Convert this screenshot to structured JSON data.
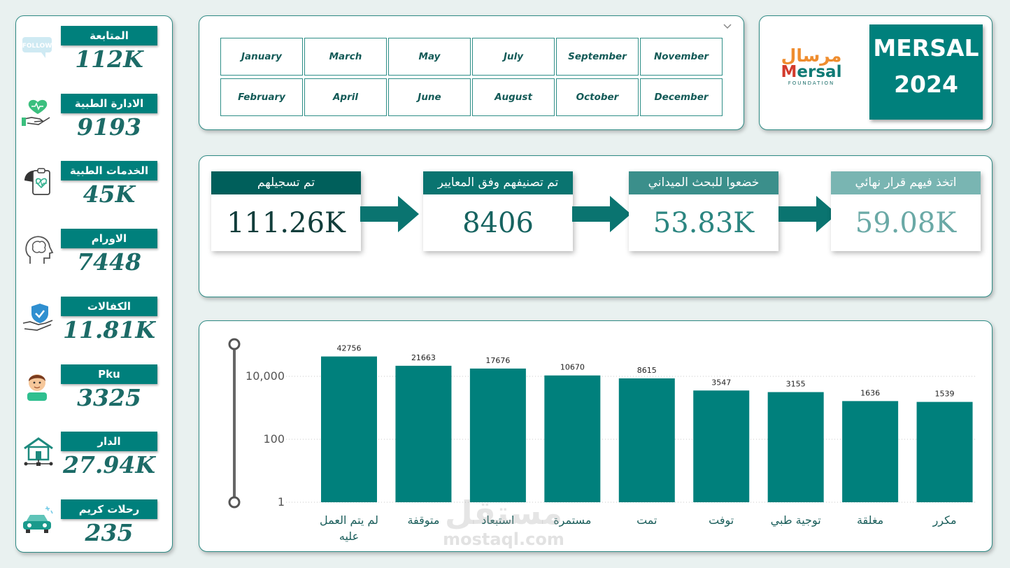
{
  "dashboard": {
    "title_line1": "MERSAL",
    "title_line2": "2024"
  },
  "logo": {
    "arabic": "مرسال",
    "latin_m": "M",
    "latin_rest": "ersal",
    "sub": "FOUNDATION"
  },
  "kpis": [
    {
      "label": "المتابعة",
      "value": "112K",
      "icon": "follow-icon"
    },
    {
      "label": "الادارة الطبية",
      "value": "9193",
      "icon": "heart-hand-icon"
    },
    {
      "label": "الخدمات الطبية",
      "value": "45K",
      "icon": "medical-report-icon"
    },
    {
      "label": "الاورام",
      "value": "7448",
      "icon": "brain-head-icon"
    },
    {
      "label": "الكفالات",
      "value": "11.81K",
      "icon": "shield-hand-icon"
    },
    {
      "label": "Pku",
      "value": "3325",
      "icon": "child-avatar-icon"
    },
    {
      "label": "الدار",
      "value": "27.94K",
      "icon": "house-network-icon"
    },
    {
      "label": "رحلات كريم",
      "value": "235",
      "icon": "car-icon"
    }
  ],
  "months": [
    "January",
    "March",
    "May",
    "July",
    "September",
    "November",
    "February",
    "April",
    "June",
    "August",
    "October",
    "December"
  ],
  "funnel": [
    {
      "label": "تم تسجيلهم",
      "value": "111.26K",
      "label_bg": "#005f5b",
      "value_color": "#113d3b"
    },
    {
      "label": "تم تصنيفهم وفق المعايير",
      "value": "8406",
      "label_bg": "#0a7470",
      "value_color": "#166360"
    },
    {
      "label": "خضعوا للبحث الميداني",
      "value": "53.83K",
      "label_bg": "#3b8f8b",
      "value_color": "#2b8580"
    },
    {
      "label": "اتخذ فيهم قرار نهائي",
      "value": "59.08K",
      "label_bg": "#79b5b2",
      "value_color": "#6aa9a6"
    }
  ],
  "colors": {
    "accent": "#00807c",
    "bar": "#00807c"
  },
  "chart_data": {
    "type": "bar",
    "yscale": "log",
    "ylim": [
      1,
      100000
    ],
    "yticks": [
      {
        "value": 1,
        "label": "1"
      },
      {
        "value": 100,
        "label": "100"
      },
      {
        "value": 10000,
        "label": "10,000"
      }
    ],
    "categories": [
      "لم يتم العمل عليه",
      "متوقفة",
      "استبعاد",
      "مستمرة",
      "تمت",
      "توفت",
      "توجية طبي",
      "مغلقة",
      "مكرر"
    ],
    "values": [
      42756,
      21663,
      17676,
      10670,
      8615,
      3547,
      3155,
      1636,
      1539
    ],
    "data_labels": [
      "42756",
      "21663",
      "17676",
      "10670",
      "8615",
      "3547",
      "3155",
      "1636",
      "1539"
    ],
    "grid": true,
    "legend": "none"
  },
  "watermark": {
    "arabic": "مستقل",
    "latin": "mostaql.com"
  }
}
